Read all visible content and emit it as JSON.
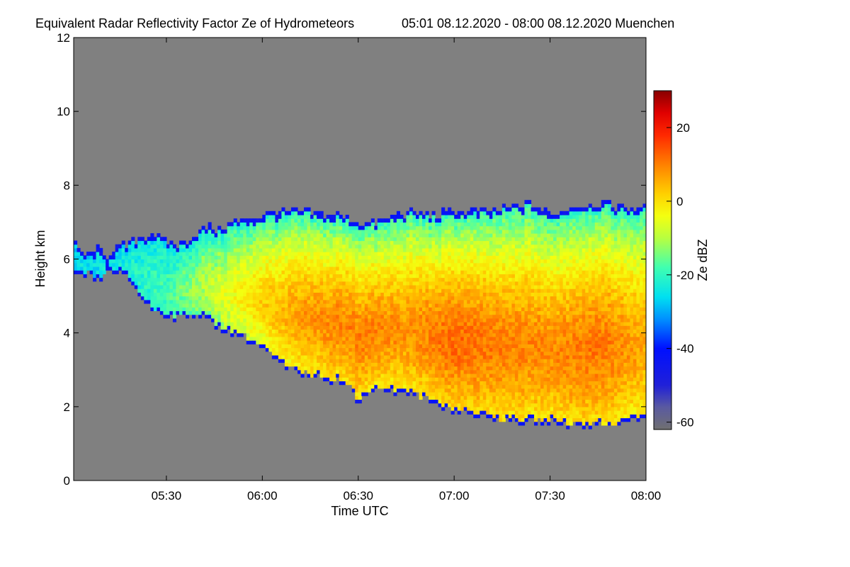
{
  "chart_data": {
    "type": "heatmap",
    "title": "Equivalent Radar Reflectivity Factor Ze of Hydrometeors",
    "time_range_label": "05:01 08.12.2020 - 08:00 08.12.2020 Muenchen",
    "xlabel": "Time UTC",
    "ylabel": "Height km",
    "x_range_minutes": [
      301,
      480
    ],
    "x_ticks": [
      {
        "minute": 330,
        "label": "05:30"
      },
      {
        "minute": 360,
        "label": "06:00"
      },
      {
        "minute": 390,
        "label": "06:30"
      },
      {
        "minute": 420,
        "label": "07:00"
      },
      {
        "minute": 450,
        "label": "07:30"
      },
      {
        "minute": 480,
        "label": "08:00"
      }
    ],
    "ylim": [
      0,
      12
    ],
    "y_ticks": [
      {
        "value": 0,
        "label": "0"
      },
      {
        "value": 2,
        "label": "2"
      },
      {
        "value": 4,
        "label": "4"
      },
      {
        "value": 6,
        "label": "6"
      },
      {
        "value": 8,
        "label": "8"
      },
      {
        "value": 10,
        "label": "10"
      },
      {
        "value": 12,
        "label": "12"
      }
    ],
    "colorbar": {
      "label": "Ze dBZ",
      "range": [
        -62,
        30
      ],
      "ticks": [
        {
          "value": 20,
          "label": "20"
        },
        {
          "value": 0,
          "label": "0"
        },
        {
          "value": -20,
          "label": "-20"
        },
        {
          "value": -40,
          "label": "-40"
        },
        {
          "value": -60,
          "label": "-60"
        }
      ],
      "stops": [
        {
          "value": -62,
          "color": "#707070"
        },
        {
          "value": -56,
          "color": "#5a5aa0"
        },
        {
          "value": -50,
          "color": "#2020d8"
        },
        {
          "value": -40,
          "color": "#0010ff"
        },
        {
          "value": -32,
          "color": "#0090ff"
        },
        {
          "value": -26,
          "color": "#00e0f0"
        },
        {
          "value": -18,
          "color": "#40ffb0"
        },
        {
          "value": -10,
          "color": "#b8ff40"
        },
        {
          "value": -4,
          "color": "#f4ff10"
        },
        {
          "value": 2,
          "color": "#ffd000"
        },
        {
          "value": 10,
          "color": "#ff8000"
        },
        {
          "value": 18,
          "color": "#ff2800"
        },
        {
          "value": 24,
          "color": "#e00000"
        },
        {
          "value": 30,
          "color": "#880000"
        }
      ]
    },
    "background_color": "#808080",
    "echo_top_km": [
      {
        "minute": 301,
        "h": 6.4
      },
      {
        "minute": 305,
        "h": 6.1
      },
      {
        "minute": 308,
        "h": 6.3
      },
      {
        "minute": 311,
        "h": 6.0
      },
      {
        "minute": 314,
        "h": 6.3
      },
      {
        "minute": 318,
        "h": 6.4
      },
      {
        "minute": 322,
        "h": 6.6
      },
      {
        "minute": 326,
        "h": 6.7
      },
      {
        "minute": 330,
        "h": 6.5
      },
      {
        "minute": 334,
        "h": 6.4
      },
      {
        "minute": 338,
        "h": 6.6
      },
      {
        "minute": 342,
        "h": 6.9
      },
      {
        "minute": 346,
        "h": 6.8
      },
      {
        "minute": 350,
        "h": 7.0
      },
      {
        "minute": 356,
        "h": 7.1
      },
      {
        "minute": 360,
        "h": 7.2
      },
      {
        "minute": 366,
        "h": 7.3
      },
      {
        "minute": 372,
        "h": 7.3
      },
      {
        "minute": 378,
        "h": 7.2
      },
      {
        "minute": 384,
        "h": 7.2
      },
      {
        "minute": 390,
        "h": 7.0
      },
      {
        "minute": 396,
        "h": 7.0
      },
      {
        "minute": 402,
        "h": 7.2
      },
      {
        "minute": 408,
        "h": 7.3
      },
      {
        "minute": 414,
        "h": 7.2
      },
      {
        "minute": 420,
        "h": 7.3
      },
      {
        "minute": 426,
        "h": 7.3
      },
      {
        "minute": 432,
        "h": 7.3
      },
      {
        "minute": 438,
        "h": 7.4
      },
      {
        "minute": 444,
        "h": 7.5
      },
      {
        "minute": 450,
        "h": 7.2
      },
      {
        "minute": 456,
        "h": 7.4
      },
      {
        "minute": 462,
        "h": 7.5
      },
      {
        "minute": 468,
        "h": 7.5
      },
      {
        "minute": 474,
        "h": 7.4
      },
      {
        "minute": 480,
        "h": 7.4
      }
    ],
    "echo_base_km": [
      {
        "minute": 301,
        "h": 5.5
      },
      {
        "minute": 305,
        "h": 5.6
      },
      {
        "minute": 308,
        "h": 5.4
      },
      {
        "minute": 311,
        "h": 5.6
      },
      {
        "minute": 314,
        "h": 5.7
      },
      {
        "minute": 318,
        "h": 5.5
      },
      {
        "minute": 322,
        "h": 5.0
      },
      {
        "minute": 326,
        "h": 4.6
      },
      {
        "minute": 330,
        "h": 4.5
      },
      {
        "minute": 334,
        "h": 4.4
      },
      {
        "minute": 338,
        "h": 4.5
      },
      {
        "minute": 342,
        "h": 4.4
      },
      {
        "minute": 348,
        "h": 4.1
      },
      {
        "minute": 354,
        "h": 3.9
      },
      {
        "minute": 360,
        "h": 3.6
      },
      {
        "minute": 366,
        "h": 3.1
      },
      {
        "minute": 372,
        "h": 2.9
      },
      {
        "minute": 378,
        "h": 2.8
      },
      {
        "minute": 384,
        "h": 2.7
      },
      {
        "minute": 388,
        "h": 2.5
      },
      {
        "minute": 390,
        "h": 2.0
      },
      {
        "minute": 392,
        "h": 2.4
      },
      {
        "minute": 396,
        "h": 2.5
      },
      {
        "minute": 402,
        "h": 2.4
      },
      {
        "minute": 408,
        "h": 2.3
      },
      {
        "minute": 414,
        "h": 2.1
      },
      {
        "minute": 420,
        "h": 1.9
      },
      {
        "minute": 426,
        "h": 1.8
      },
      {
        "minute": 432,
        "h": 1.7
      },
      {
        "minute": 438,
        "h": 1.6
      },
      {
        "minute": 444,
        "h": 1.6
      },
      {
        "minute": 450,
        "h": 1.6
      },
      {
        "minute": 456,
        "h": 1.5
      },
      {
        "minute": 462,
        "h": 1.5
      },
      {
        "minute": 468,
        "h": 1.5
      },
      {
        "minute": 474,
        "h": 1.6
      },
      {
        "minute": 480,
        "h": 1.7
      }
    ],
    "core_max_dbz": [
      {
        "minute": 301,
        "dbz": -26
      },
      {
        "minute": 315,
        "dbz": -24
      },
      {
        "minute": 330,
        "dbz": -18
      },
      {
        "minute": 345,
        "dbz": -8
      },
      {
        "minute": 360,
        "dbz": 2
      },
      {
        "minute": 375,
        "dbz": 8
      },
      {
        "minute": 390,
        "dbz": 10
      },
      {
        "minute": 405,
        "dbz": 8
      },
      {
        "minute": 420,
        "dbz": 12
      },
      {
        "minute": 435,
        "dbz": 10
      },
      {
        "minute": 450,
        "dbz": 9
      },
      {
        "minute": 465,
        "dbz": 11
      },
      {
        "minute": 480,
        "dbz": 6
      }
    ]
  }
}
